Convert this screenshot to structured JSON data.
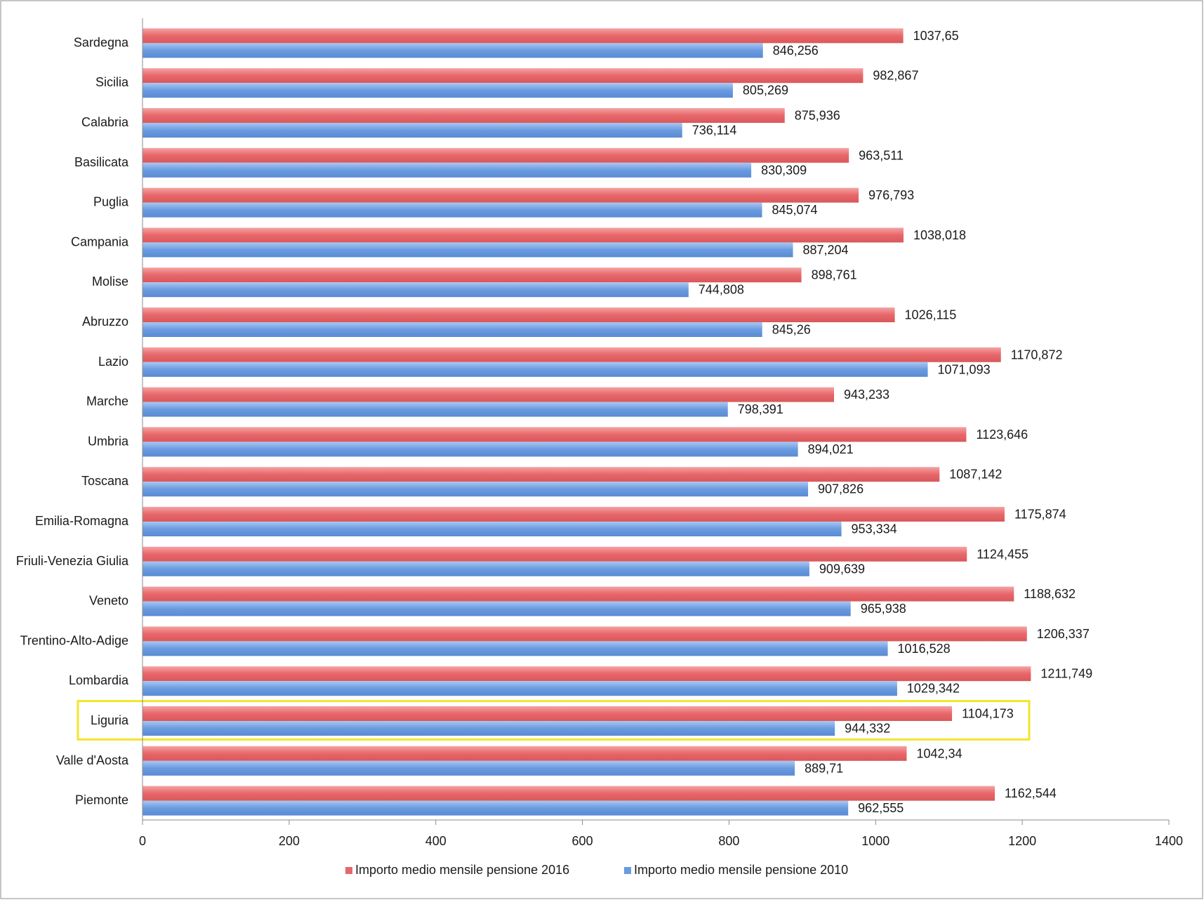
{
  "chart_data": {
    "type": "bar",
    "orientation": "horizontal",
    "title": "",
    "xlabel": "",
    "ylabel": "",
    "xlim": [
      0,
      1400
    ],
    "x_ticks": [
      "0",
      "200",
      "400",
      "600",
      "800",
      "1000",
      "1200",
      "1400"
    ],
    "grid": false,
    "legend_position": "bottom",
    "highlighted_category": "Liguria",
    "highlight_color": "#f2e52b",
    "categories": [
      "Sardegna",
      "Sicilia",
      "Calabria",
      "Basilicata",
      "Puglia",
      "Campania",
      "Molise",
      "Abruzzo",
      "Lazio",
      "Marche",
      "Umbria",
      "Toscana",
      "Emilia-Romagna",
      "Friuli-Venezia Giulia",
      "Veneto",
      "Trentino-Alto-Adige",
      "Lombardia",
      "Liguria",
      "Valle d'Aosta",
      "Piemonte"
    ],
    "series": [
      {
        "name": "Importo medio mensile pensione 2016",
        "color": "#e8676a",
        "values": [
          1037.65,
          982.867,
          875.936,
          963.511,
          976.793,
          1038.018,
          898.761,
          1026.115,
          1170.872,
          943.233,
          1123.646,
          1087.142,
          1175.874,
          1124.455,
          1188.632,
          1206.337,
          1211.749,
          1104.173,
          1042.34,
          1162.544
        ],
        "labels": [
          "1037,65",
          "982,867",
          "875,936",
          "963,511",
          "976,793",
          "1038,018",
          "898,761",
          "1026,115",
          "1170,872",
          "943,233",
          "1123,646",
          "1087,142",
          "1175,874",
          "1124,455",
          "1188,632",
          "1206,337",
          "1211,749",
          "1104,173",
          "1042,34",
          "1162,544"
        ]
      },
      {
        "name": "Importo medio mensile pensione 2010",
        "color": "#6a9be0",
        "values": [
          846.256,
          805.269,
          736.114,
          830.309,
          845.074,
          887.204,
          744.808,
          845.26,
          1071.093,
          798.391,
          894.021,
          907.826,
          953.334,
          909.639,
          965.938,
          1016.528,
          1029.342,
          944.332,
          889.71,
          962.555
        ],
        "labels": [
          "846,256",
          "805,269",
          "736,114",
          "830,309",
          "845,074",
          "887,204",
          "744,808",
          "845,26",
          "1071,093",
          "798,391",
          "894,021",
          "907,826",
          "953,334",
          "909,639",
          "965,938",
          "1016,528",
          "1029,342",
          "944,332",
          "889,71",
          "962,555"
        ]
      }
    ]
  }
}
